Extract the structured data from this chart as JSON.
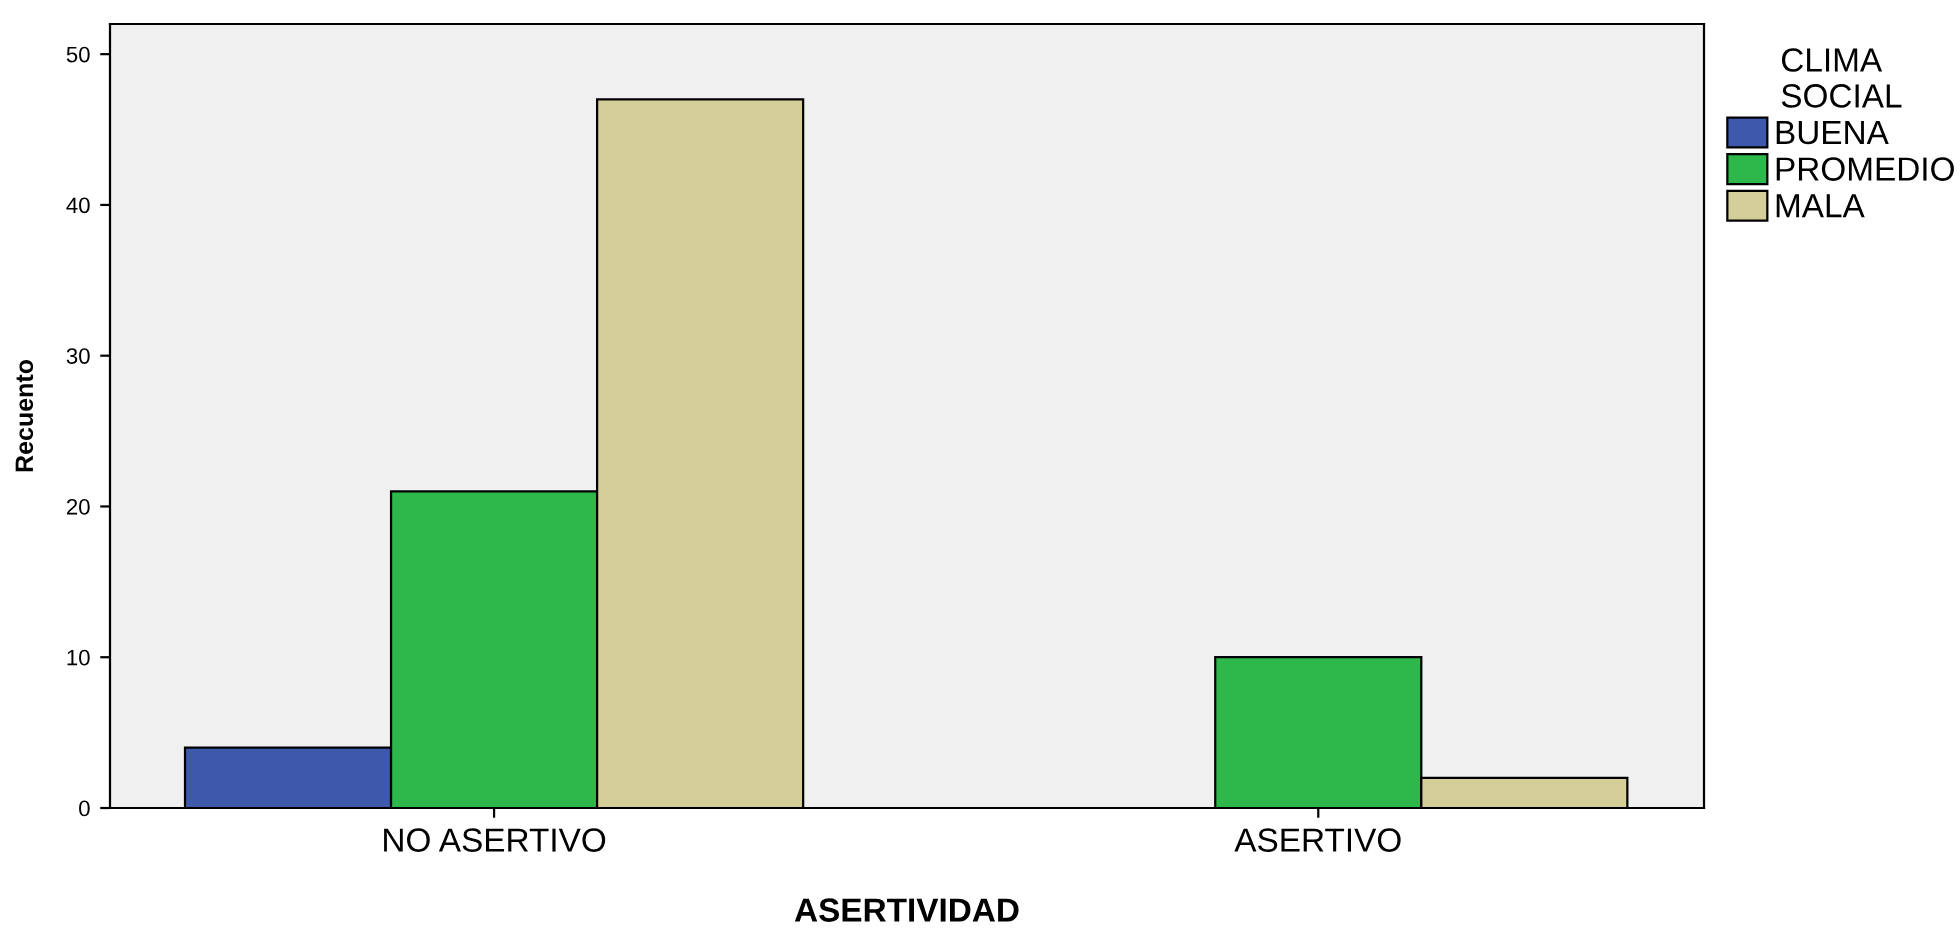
{
  "chart_data": {
    "type": "bar",
    "xlabel": "ASERTIVIDAD",
    "ylabel": "Recuento",
    "legend_title": "CLIMA SOCIAL",
    "categories": [
      "NO ASERTIVO",
      "ASERTIVO"
    ],
    "series": [
      {
        "name": "BUENA",
        "color": "#3e58ac",
        "values": [
          4,
          null
        ]
      },
      {
        "name": "PROMEDIO",
        "color": "#2eb84b",
        "values": [
          21,
          10
        ]
      },
      {
        "name": "MALA",
        "color": "#d4cf98",
        "values": [
          47,
          2
        ]
      }
    ],
    "ylim": [
      0,
      52
    ],
    "yticks": [
      0,
      10,
      20,
      30,
      40,
      50
    ],
    "grid": false,
    "legend": "right"
  }
}
